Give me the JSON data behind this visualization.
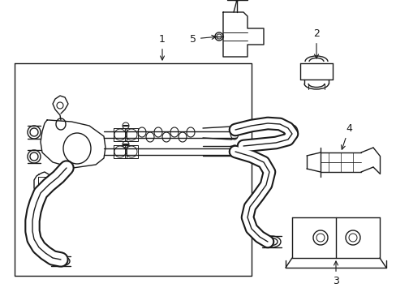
{
  "background_color": "#ffffff",
  "line_color": "#1a1a1a",
  "fig_width": 4.89,
  "fig_height": 3.6,
  "dpi": 100,
  "font_size": 9
}
